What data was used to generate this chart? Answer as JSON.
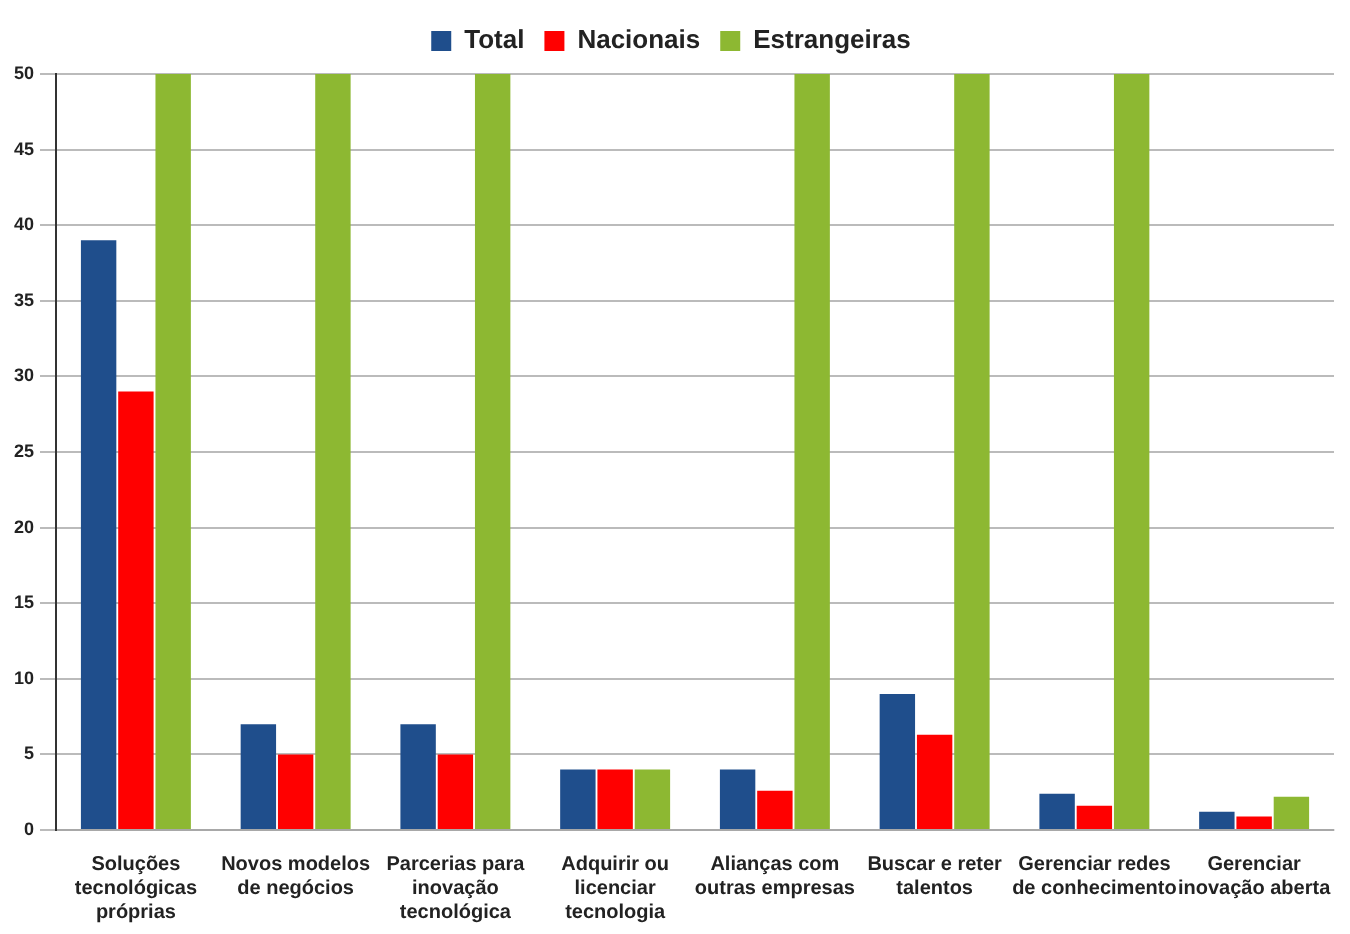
{
  "chart_data": {
    "type": "bar",
    "categories": [
      "Soluções tecnológicas próprias",
      "Novos modelos de negócios",
      "Parcerias para inovação tecnológica",
      "Adquirir ou licenciar tecnologia",
      "Alianças com outras empresas",
      "Buscar e reter talentos",
      "Gerenciar redes de conhecimento",
      "Gerenciar inovação aberta"
    ],
    "series": [
      {
        "name": "Total",
        "color": "#1f4e8c",
        "values": [
          39,
          7,
          7,
          4,
          4,
          9,
          2.4,
          1.2
        ]
      },
      {
        "name": "Nacionais",
        "color": "#ff0000",
        "values": [
          29,
          5,
          5,
          4,
          2.6,
          6.3,
          1.6,
          0.9
        ]
      },
      {
        "name": "Estrangeiras",
        "color": "#8db832",
        "values": [
          50,
          50,
          50,
          4,
          50,
          50,
          50,
          2.2
        ]
      }
    ],
    "ylim": [
      0,
      50
    ],
    "yticks": [
      0,
      5,
      10,
      15,
      20,
      25,
      30,
      35,
      40,
      45,
      50
    ],
    "grid": "y",
    "legend": "top"
  }
}
